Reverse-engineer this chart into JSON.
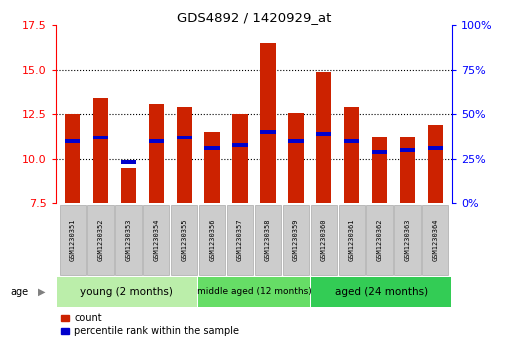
{
  "title": "GDS4892 / 1420929_at",
  "samples": [
    "GSM1230351",
    "GSM1230352",
    "GSM1230353",
    "GSM1230354",
    "GSM1230355",
    "GSM1230356",
    "GSM1230357",
    "GSM1230358",
    "GSM1230359",
    "GSM1230360",
    "GSM1230361",
    "GSM1230362",
    "GSM1230363",
    "GSM1230364"
  ],
  "counts": [
    12.5,
    13.4,
    9.5,
    13.1,
    12.9,
    11.5,
    12.5,
    16.5,
    12.6,
    14.9,
    12.9,
    11.2,
    11.2,
    11.9
  ],
  "percentile_values": [
    11.0,
    11.2,
    9.8,
    11.0,
    11.2,
    10.6,
    10.8,
    11.5,
    11.0,
    11.4,
    11.0,
    10.4,
    10.5,
    10.6
  ],
  "ymin": 7.5,
  "ymax": 17.5,
  "yticks_left": [
    7.5,
    10.0,
    12.5,
    15.0,
    17.5
  ],
  "right_yticks_pct": [
    0,
    25,
    50,
    75,
    100
  ],
  "bar_color": "#cc2200",
  "marker_color": "#0000cc",
  "bar_width": 0.55,
  "groups": [
    {
      "label": "young (2 months)",
      "start": 0,
      "end": 5,
      "color": "#bbeeaa"
    },
    {
      "label": "middle aged (12 months)",
      "start": 5,
      "end": 9,
      "color": "#66dd66"
    },
    {
      "label": "aged (24 months)",
      "start": 9,
      "end": 14,
      "color": "#33cc55"
    }
  ],
  "legend_count_label": "count",
  "legend_pct_label": "percentile rank within the sample",
  "age_label": "age",
  "xlabel_bg": "#cccccc",
  "fig_width": 5.08,
  "fig_height": 3.63,
  "dpi": 100
}
